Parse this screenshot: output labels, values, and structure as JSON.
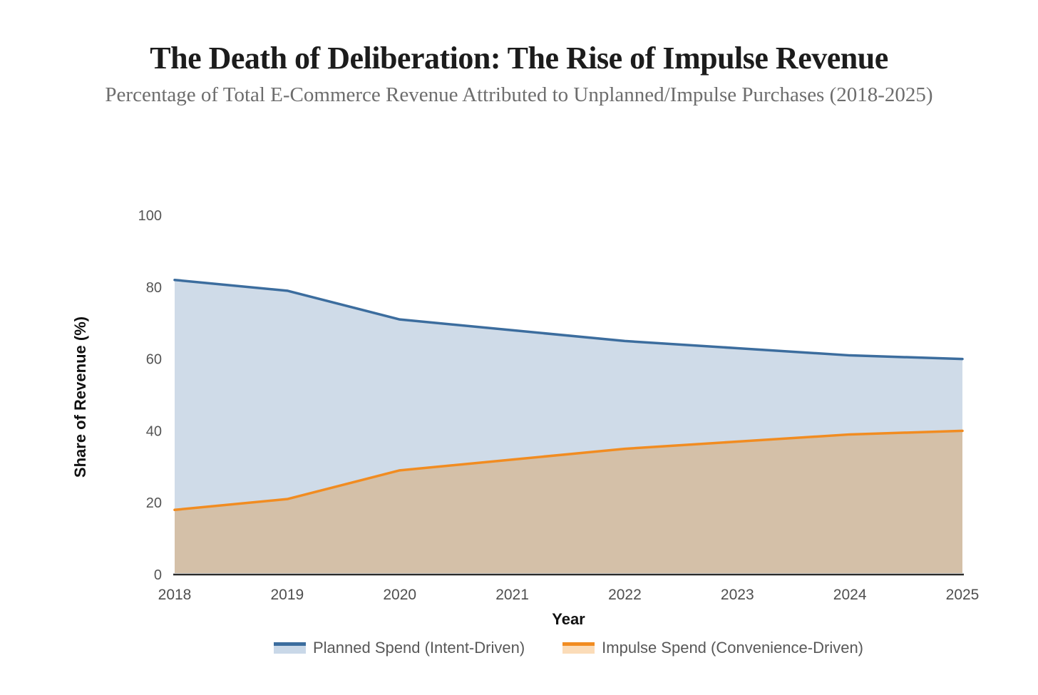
{
  "chart_data": {
    "type": "area",
    "title": "The Death of Deliberation: The Rise of Impulse Revenue",
    "subtitle": "Percentage of Total E-Commerce Revenue Attributed to Unplanned/Impulse Purchases (2018-2025)",
    "xlabel": "Year",
    "ylabel": "Share of Revenue (%)",
    "x": [
      2018,
      2019,
      2020,
      2021,
      2022,
      2023,
      2024,
      2025
    ],
    "series": [
      {
        "name": "Planned Spend (Intent-Driven)",
        "values": [
          82,
          79,
          71,
          68,
          65,
          63,
          61,
          60
        ],
        "line_color": "#3c6d9e",
        "area_color": "#cfdbe8",
        "legend_fill": "#c9d8e8"
      },
      {
        "name": "Impulse Spend (Convenience-Driven)",
        "values": [
          18,
          21,
          29,
          32,
          35,
          37,
          39,
          40
        ],
        "line_color": "#f18c21",
        "area_color": "#d4c0a8",
        "legend_fill": "#fbdcb8"
      }
    ],
    "ylim": [
      0,
      100
    ],
    "yticks": [
      0,
      20,
      40,
      60,
      80,
      100
    ],
    "grid": false,
    "legend_position": "bottom",
    "axis_color": "#2b2b2b",
    "tick_label_color": "#555555"
  }
}
